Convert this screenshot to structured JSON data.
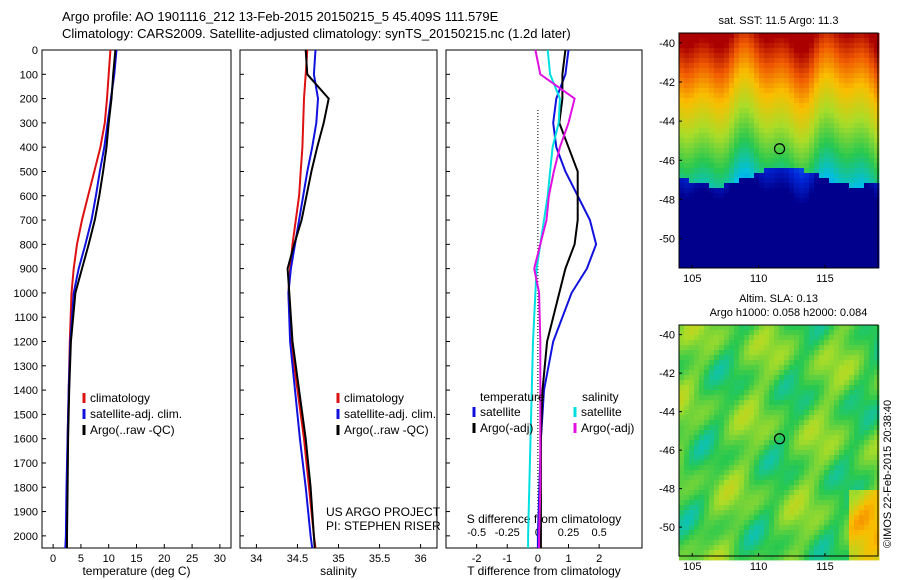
{
  "header": {
    "line1": "Argo profile: AO 1901116_212 13-Feb-2015 20150215_5 45.409S 111.579E",
    "line2": "Climatology: CARS2009. Satellite-adjusted climatology: synTS_20150215.nc (1.2d later)"
  },
  "credit": "©IMOS 22-Feb-2015 20:38:40",
  "colors": {
    "climatology": "#dd1111",
    "satellite": "#1111dd",
    "argo": "#000000",
    "salinity_sat": "#00e0e0",
    "salinity_argo": "#e010e0"
  },
  "chart_data": [
    {
      "type": "line",
      "id": "temperature",
      "xlabel": "temperature (deg C)",
      "xlim": [
        -2,
        32
      ],
      "xticks": [
        0,
        5,
        10,
        15,
        20,
        25,
        30
      ],
      "ylim": [
        0,
        2050
      ],
      "yticks": [
        0,
        100,
        200,
        300,
        400,
        500,
        600,
        700,
        800,
        900,
        1000,
        1100,
        1200,
        1300,
        1400,
        1500,
        1600,
        1700,
        1800,
        1900,
        2000
      ],
      "legend": [
        "climatology",
        "satellite-adj. clim.",
        "Argo(..raw -QC)"
      ],
      "series": [
        {
          "name": "climatology",
          "color": "#dd1111",
          "x": [
            10.3,
            10.0,
            9.7,
            9.3,
            8.5,
            7.4,
            6.3,
            5.2,
            4.3,
            3.7,
            3.3,
            3.0,
            2.8,
            2.6,
            2.5,
            2.4,
            2.3
          ],
          "y": [
            0,
            100,
            200,
            300,
            400,
            500,
            600,
            700,
            800,
            900,
            1000,
            1200,
            1400,
            1600,
            1800,
            2000,
            2050
          ]
        },
        {
          "name": "satellite-adj. clim.",
          "color": "#1111dd",
          "x": [
            11.4,
            11.0,
            10.4,
            9.8,
            9.2,
            8.4,
            7.7,
            6.9,
            5.8,
            4.6,
            3.7,
            3.1,
            2.8,
            2.6,
            2.4,
            2.3,
            2.2
          ],
          "y": [
            0,
            100,
            200,
            300,
            400,
            500,
            600,
            700,
            800,
            900,
            1000,
            1200,
            1400,
            1600,
            1800,
            2000,
            2050
          ]
        },
        {
          "name": "Argo(..raw -QC)",
          "color": "#000000",
          "x": [
            11.2,
            10.8,
            10.5,
            10.0,
            9.6,
            9.0,
            8.3,
            7.5,
            6.4,
            5.2,
            4.0,
            3.2,
            2.9,
            2.7,
            2.6,
            2.5,
            2.5
          ],
          "y": [
            0,
            100,
            200,
            300,
            400,
            500,
            600,
            700,
            800,
            900,
            1000,
            1200,
            1400,
            1600,
            1800,
            2000,
            2050
          ]
        }
      ]
    },
    {
      "type": "line",
      "id": "salinity",
      "xlabel": "salinity",
      "xlim": [
        33.8,
        36.2
      ],
      "xticks": [
        34,
        34.5,
        35,
        35.5,
        36
      ],
      "xticklabels": [
        "34",
        "34.5",
        "35",
        "35.5",
        "36"
      ],
      "ylim": [
        0,
        2050
      ],
      "legend": [
        "climatology",
        "satellite-adj. clim.",
        "Argo(..raw -QC)"
      ],
      "annotation": [
        "US ARGO PROJECT",
        "PI: STEPHEN RISER"
      ],
      "series": [
        {
          "name": "climatology",
          "color": "#dd1111",
          "x": [
            34.62,
            34.6,
            34.58,
            34.57,
            34.56,
            34.54,
            34.52,
            34.48,
            34.44,
            34.41,
            34.39,
            34.42,
            34.5,
            34.58,
            34.64,
            34.7,
            34.72
          ],
          "y": [
            0,
            100,
            200,
            300,
            400,
            500,
            600,
            700,
            800,
            900,
            1000,
            1200,
            1400,
            1600,
            1800,
            2000,
            2050
          ]
        },
        {
          "name": "satellite-adj. clim.",
          "color": "#1111dd",
          "x": [
            34.72,
            34.7,
            34.75,
            34.73,
            34.68,
            34.62,
            34.57,
            34.52,
            34.47,
            34.42,
            34.39,
            34.41,
            34.47,
            34.53,
            34.6,
            34.66,
            34.68
          ],
          "y": [
            0,
            100,
            200,
            300,
            400,
            500,
            600,
            700,
            800,
            900,
            1000,
            1200,
            1400,
            1600,
            1800,
            2000,
            2050
          ]
        },
        {
          "name": "Argo(..raw -QC)",
          "color": "#000000",
          "x": [
            34.6,
            34.62,
            34.88,
            34.82,
            34.74,
            34.67,
            34.61,
            34.55,
            34.46,
            34.38,
            34.4,
            34.44,
            34.52,
            34.6,
            34.66,
            34.7,
            34.71
          ],
          "y": [
            0,
            100,
            200,
            300,
            400,
            500,
            600,
            700,
            800,
            900,
            1000,
            1200,
            1400,
            1600,
            1800,
            2000,
            2050
          ]
        }
      ]
    },
    {
      "type": "line",
      "id": "difference",
      "xlabel": "T difference from climatology",
      "xlim": [
        -3,
        3.4
      ],
      "xticks": [
        -2,
        -1,
        0,
        1,
        2
      ],
      "xlabel2": "S difference from climatology",
      "xlim2": [
        -0.75,
        0.85
      ],
      "xticks2": [
        -0.5,
        -0.25,
        0,
        0.25,
        0.5
      ],
      "xticklabels2": [
        "-0.5",
        "-0.25",
        "0",
        "0.25",
        "0.5"
      ],
      "ylim": [
        0,
        2050
      ],
      "legend_groups": [
        {
          "title": "temperature",
          "entries": [
            "satellite",
            "Argo(-adj)"
          ]
        },
        {
          "title": "salinity",
          "entries": [
            "satellite",
            "Argo(-adj)"
          ]
        }
      ],
      "series": [
        {
          "name": "satellite",
          "group": "temperature",
          "color": "#1111dd",
          "x": [
            1.0,
            0.9,
            0.6,
            0.5,
            0.6,
            0.9,
            1.3,
            1.7,
            1.9,
            1.6,
            1.1,
            0.5,
            0.2,
            0.1,
            0.05,
            0.0,
            0.0
          ],
          "y": [
            0,
            100,
            200,
            300,
            400,
            500,
            600,
            700,
            800,
            900,
            1000,
            1200,
            1400,
            1600,
            1800,
            2000,
            2050
          ]
        },
        {
          "name": "Argo(-adj)",
          "group": "temperature",
          "color": "#000000",
          "x": [
            0.9,
            0.8,
            0.8,
            0.7,
            1.0,
            1.3,
            1.3,
            1.3,
            1.2,
            0.9,
            0.7,
            0.3,
            0.15,
            0.1,
            0.1,
            0.1,
            0.1
          ],
          "y": [
            0,
            100,
            200,
            300,
            400,
            500,
            600,
            700,
            800,
            900,
            1000,
            1200,
            1400,
            1600,
            1800,
            2000,
            2050
          ]
        },
        {
          "name": "satellite",
          "group": "salinity",
          "color": "#00e0e0",
          "x": [
            0.08,
            0.1,
            0.18,
            0.17,
            0.12,
            0.1,
            0.08,
            0.05,
            0.02,
            -0.01,
            -0.02,
            -0.04,
            -0.05,
            -0.06,
            -0.07,
            -0.08,
            -0.08
          ],
          "y": [
            0,
            100,
            200,
            300,
            400,
            500,
            600,
            700,
            800,
            900,
            1000,
            1200,
            1400,
            1600,
            1800,
            2000,
            2050
          ]
        },
        {
          "name": "Argo(-adj)",
          "group": "salinity",
          "color": "#e010e0",
          "x": [
            -0.02,
            0.02,
            0.3,
            0.25,
            0.18,
            0.13,
            0.09,
            0.07,
            0.02,
            -0.03,
            0.01,
            0.02,
            0.02,
            0.02,
            0.02,
            0.01,
            0.01
          ],
          "y": [
            0,
            100,
            200,
            300,
            400,
            500,
            600,
            700,
            800,
            900,
            1000,
            1200,
            1400,
            1600,
            1800,
            2000,
            2050
          ]
        }
      ]
    },
    {
      "type": "heatmap",
      "id": "sst-map",
      "title": "sat. SST: 11.5  Argo: 11.3",
      "xlim": [
        104,
        119
      ],
      "ylim": [
        -51.5,
        -39.5
      ],
      "xticks": [
        105,
        110,
        115
      ],
      "yticks": [
        -50,
        -48,
        -46,
        -44,
        -42,
        -40
      ],
      "marker": {
        "lon": 111.579,
        "lat": -45.409
      }
    },
    {
      "type": "heatmap",
      "id": "sla-map",
      "title": "Altim. SLA: 0.13",
      "subtitle": "Argo h1000: 0.058 h2000: 0.084",
      "xlim": [
        104,
        119
      ],
      "ylim": [
        -51.5,
        -39.5
      ],
      "xticks": [
        105,
        110,
        115
      ],
      "yticks": [
        -50,
        -48,
        -46,
        -44,
        -42,
        -40
      ],
      "marker": {
        "lon": 111.579,
        "lat": -45.409
      }
    }
  ]
}
